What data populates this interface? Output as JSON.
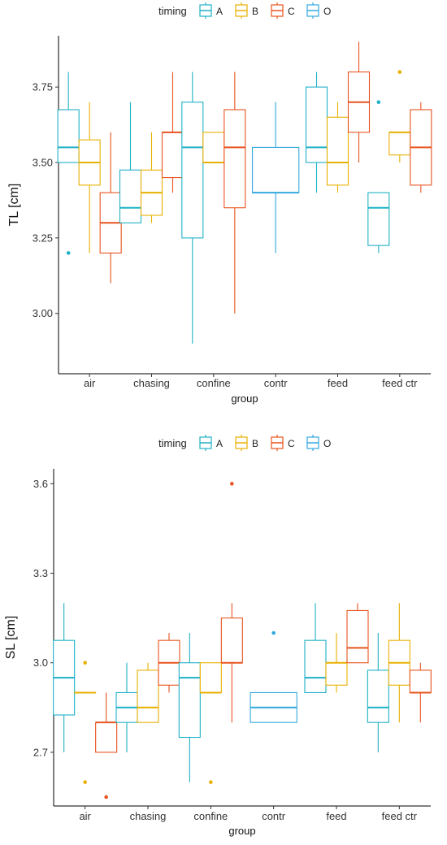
{
  "legend": {
    "title": "timing",
    "entries": [
      {
        "label": "A",
        "color": "#1FB1C6"
      },
      {
        "label": "B",
        "color": "#E8B000"
      },
      {
        "label": "C",
        "color": "#E8531F"
      },
      {
        "label": "O",
        "color": "#34A8DE"
      }
    ]
  },
  "chart_data": [
    {
      "type": "boxplot",
      "xlabel": "group",
      "ylabel": "TL [cm]",
      "categories": [
        "air",
        "chasing",
        "confine",
        "contr",
        "feed",
        "feed ctr"
      ],
      "ylim": [
        2.8,
        3.92
      ],
      "yticks": [
        3.0,
        3.25,
        3.5,
        3.75
      ],
      "ytick_labels": [
        "3.00",
        "3.25",
        "3.50",
        "3.75"
      ],
      "boxes": [
        {
          "group": "air",
          "timing": "A",
          "min": 3.5,
          "q1": 3.5,
          "median": 3.55,
          "q3": 3.675,
          "max": 3.8,
          "outliers": [
            3.2
          ]
        },
        {
          "group": "air",
          "timing": "B",
          "min": 3.2,
          "q1": 3.425,
          "median": 3.5,
          "q3": 3.575,
          "max": 3.7,
          "outliers": []
        },
        {
          "group": "air",
          "timing": "C",
          "min": 3.1,
          "q1": 3.2,
          "median": 3.3,
          "q3": 3.4,
          "max": 3.6,
          "outliers": []
        },
        {
          "group": "chasing",
          "timing": "A",
          "min": 3.3,
          "q1": 3.3,
          "median": 3.35,
          "q3": 3.475,
          "max": 3.7,
          "outliers": []
        },
        {
          "group": "chasing",
          "timing": "B",
          "min": 3.3,
          "q1": 3.325,
          "median": 3.4,
          "q3": 3.475,
          "max": 3.6,
          "outliers": []
        },
        {
          "group": "chasing",
          "timing": "C",
          "min": 3.4,
          "q1": 3.45,
          "median": 3.6,
          "q3": 3.6,
          "max": 3.8,
          "outliers": []
        },
        {
          "group": "confine",
          "timing": "A",
          "min": 2.9,
          "q1": 3.25,
          "median": 3.55,
          "q3": 3.7,
          "max": 3.8,
          "outliers": []
        },
        {
          "group": "confine",
          "timing": "B",
          "min": 3.5,
          "q1": 3.5,
          "median": 3.5,
          "q3": 3.6,
          "max": 3.6,
          "outliers": []
        },
        {
          "group": "confine",
          "timing": "C",
          "min": 3.0,
          "q1": 3.35,
          "median": 3.55,
          "q3": 3.675,
          "max": 3.8,
          "outliers": []
        },
        {
          "group": "contr",
          "timing": "O",
          "min": 3.2,
          "q1": 3.4,
          "median": 3.4,
          "q3": 3.55,
          "max": 3.7,
          "outliers": []
        },
        {
          "group": "feed",
          "timing": "A",
          "min": 3.4,
          "q1": 3.5,
          "median": 3.55,
          "q3": 3.75,
          "max": 3.8,
          "outliers": []
        },
        {
          "group": "feed",
          "timing": "B",
          "min": 3.4,
          "q1": 3.425,
          "median": 3.5,
          "q3": 3.65,
          "max": 3.7,
          "outliers": []
        },
        {
          "group": "feed",
          "timing": "C",
          "min": 3.5,
          "q1": 3.6,
          "median": 3.7,
          "q3": 3.8,
          "max": 3.9,
          "outliers": []
        },
        {
          "group": "feed ctr",
          "timing": "A",
          "min": 3.2,
          "q1": 3.225,
          "median": 3.35,
          "q3": 3.4,
          "max": 3.4,
          "outliers": [
            3.7
          ]
        },
        {
          "group": "feed ctr",
          "timing": "B",
          "min": 3.5,
          "q1": 3.525,
          "median": 3.6,
          "q3": 3.6,
          "max": 3.6,
          "outliers": [
            3.8
          ]
        },
        {
          "group": "feed ctr",
          "timing": "C",
          "min": 3.4,
          "q1": 3.425,
          "median": 3.55,
          "q3": 3.675,
          "max": 3.7,
          "outliers": []
        }
      ]
    },
    {
      "type": "boxplot",
      "xlabel": "group",
      "ylabel": "SL [cm]",
      "categories": [
        "air",
        "chasing",
        "confine",
        "contr",
        "feed",
        "feed ctr"
      ],
      "ylim": [
        2.52,
        3.65
      ],
      "yticks": [
        2.7,
        3.0,
        3.3,
        3.6
      ],
      "ytick_labels": [
        "2.7",
        "3.0",
        "3.3",
        "3.6"
      ],
      "boxes": [
        {
          "group": "air",
          "timing": "A",
          "min": 2.7,
          "q1": 2.825,
          "median": 2.95,
          "q3": 3.075,
          "max": 3.2,
          "outliers": []
        },
        {
          "group": "air",
          "timing": "B",
          "min": 2.9,
          "q1": 2.9,
          "median": 2.9,
          "q3": 2.9,
          "max": 2.9,
          "outliers": [
            3.0,
            2.6
          ]
        },
        {
          "group": "air",
          "timing": "C",
          "min": 2.7,
          "q1": 2.7,
          "median": 2.8,
          "q3": 2.8,
          "max": 2.9,
          "outliers": [
            2.55
          ]
        },
        {
          "group": "chasing",
          "timing": "A",
          "min": 2.7,
          "q1": 2.8,
          "median": 2.85,
          "q3": 2.9,
          "max": 3.0,
          "outliers": []
        },
        {
          "group": "chasing",
          "timing": "B",
          "min": 2.8,
          "q1": 2.8,
          "median": 2.85,
          "q3": 2.975,
          "max": 3.0,
          "outliers": []
        },
        {
          "group": "chasing",
          "timing": "C",
          "min": 2.9,
          "q1": 2.925,
          "median": 3.0,
          "q3": 3.075,
          "max": 3.1,
          "outliers": []
        },
        {
          "group": "confine",
          "timing": "A",
          "min": 2.6,
          "q1": 2.75,
          "median": 2.95,
          "q3": 3.0,
          "max": 3.1,
          "outliers": []
        },
        {
          "group": "confine",
          "timing": "B",
          "min": 2.9,
          "q1": 2.9,
          "median": 2.9,
          "q3": 3.0,
          "max": 3.0,
          "outliers": [
            2.6
          ]
        },
        {
          "group": "confine",
          "timing": "C",
          "min": 2.8,
          "q1": 3.0,
          "median": 3.0,
          "q3": 3.15,
          "max": 3.2,
          "outliers": [
            3.6
          ]
        },
        {
          "group": "contr",
          "timing": "O",
          "min": 2.8,
          "q1": 2.8,
          "median": 2.85,
          "q3": 2.9,
          "max": 2.9,
          "outliers": [
            3.1
          ]
        },
        {
          "group": "feed",
          "timing": "A",
          "min": 2.9,
          "q1": 2.9,
          "median": 2.95,
          "q3": 3.075,
          "max": 3.2,
          "outliers": []
        },
        {
          "group": "feed",
          "timing": "B",
          "min": 2.9,
          "q1": 2.925,
          "median": 3.0,
          "q3": 3.0,
          "max": 3.1,
          "outliers": []
        },
        {
          "group": "feed",
          "timing": "C",
          "min": 3.0,
          "q1": 3.0,
          "median": 3.05,
          "q3": 3.175,
          "max": 3.2,
          "outliers": []
        },
        {
          "group": "feed ctr",
          "timing": "A",
          "min": 2.7,
          "q1": 2.8,
          "median": 2.85,
          "q3": 2.975,
          "max": 3.1,
          "outliers": []
        },
        {
          "group": "feed ctr",
          "timing": "B",
          "min": 2.8,
          "q1": 2.925,
          "median": 3.0,
          "q3": 3.075,
          "max": 3.2,
          "outliers": []
        },
        {
          "group": "feed ctr",
          "timing": "C",
          "min": 2.8,
          "q1": 2.9,
          "median": 2.9,
          "q3": 2.975,
          "max": 3.0,
          "outliers": []
        }
      ]
    }
  ]
}
